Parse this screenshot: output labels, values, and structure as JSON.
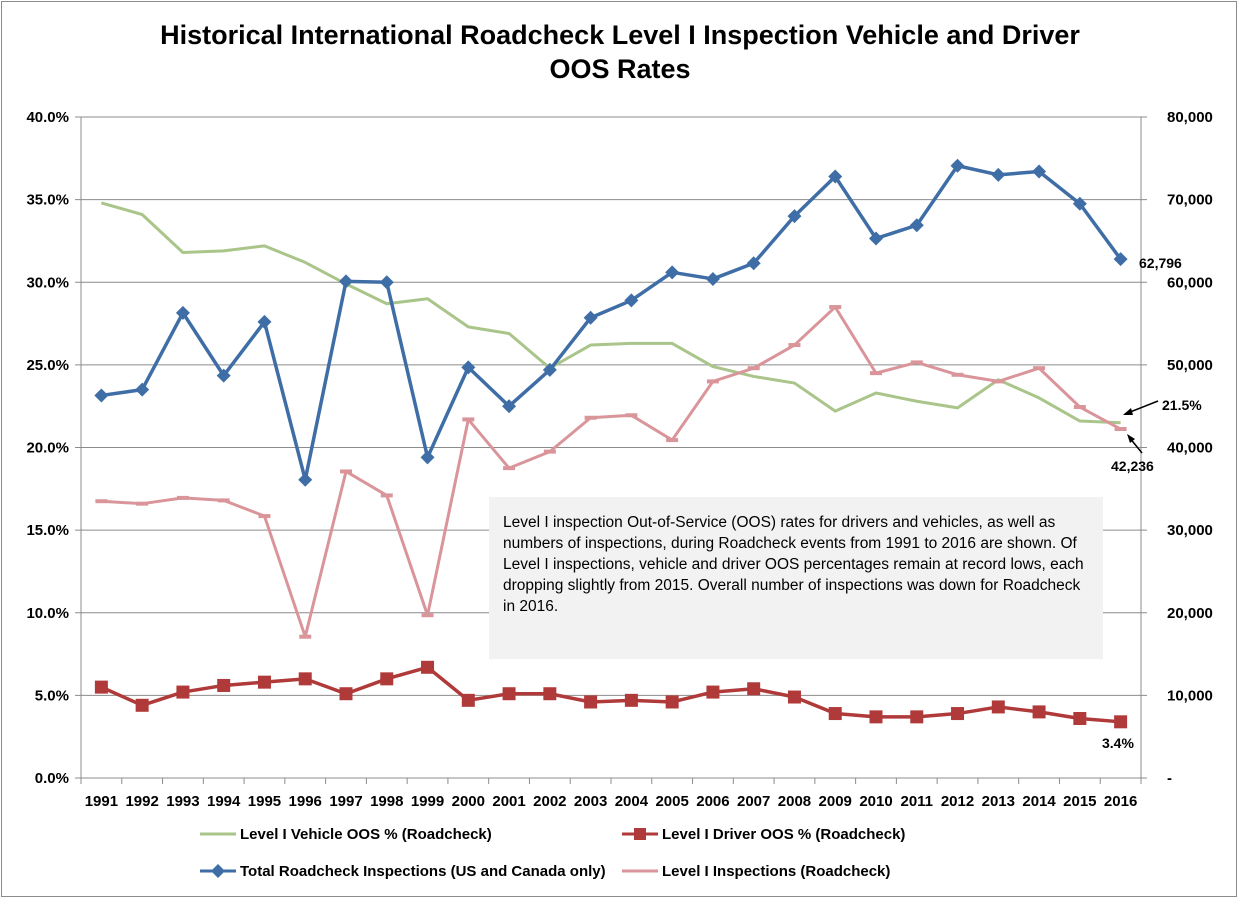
{
  "title_line1": "Historical International Roadcheck Level I Inspection Vehicle and Driver",
  "title_line2": "OOS Rates",
  "note_text": "Level I inspection Out-of-Service (OOS) rates for drivers and vehicles, as well as numbers of inspections, during Roadcheck events from 1991 to 2016 are shown.  Of Level I inspections, vehicle and driver OOS percentages remain at record lows, each dropping slightly from 2015. Overall number of inspections was down for Roadcheck in 2016.",
  "annotations": {
    "total_last": "62,796",
    "vehicle_last": "21.5%",
    "level1_last": "42,236",
    "driver_last": "3.4%"
  },
  "colors": {
    "vehicle": "#a9c58a",
    "driver": "#b03a3a",
    "total": "#3f6ea7",
    "level1": "#d9959a"
  },
  "chart_data": {
    "type": "line",
    "categories": [
      "1991",
      "1992",
      "1993",
      "1994",
      "1995",
      "1996",
      "1997",
      "1998",
      "1999",
      "2000",
      "2001",
      "2002",
      "2003",
      "2004",
      "2005",
      "2006",
      "2007",
      "2008",
      "2009",
      "2010",
      "2011",
      "2012",
      "2013",
      "2014",
      "2015",
      "2016"
    ],
    "left_axis": {
      "ylim": [
        0,
        40
      ],
      "ticks": [
        "0.0%",
        "5.0%",
        "10.0%",
        "15.0%",
        "20.0%",
        "25.0%",
        "30.0%",
        "35.0%",
        "40.0%"
      ]
    },
    "right_axis": {
      "ylim": [
        0,
        80000
      ],
      "ticks": [
        "-",
        "10,000",
        "20,000",
        "30,000",
        "40,000",
        "50,000",
        "60,000",
        "70,000",
        "80,000"
      ]
    },
    "series": [
      {
        "name": "Level I Vehicle OOS % (Roadcheck)",
        "axis": "left",
        "marker": "none",
        "values": [
          34.8,
          34.1,
          31.8,
          31.9,
          32.2,
          31.2,
          29.9,
          28.7,
          29.0,
          27.3,
          26.9,
          24.8,
          26.2,
          26.3,
          26.3,
          24.9,
          24.3,
          23.9,
          22.2,
          23.3,
          22.8,
          22.4,
          24.1,
          23.0,
          21.6,
          21.5
        ]
      },
      {
        "name": "Level I Driver OOS % (Roadcheck)",
        "axis": "left",
        "marker": "square",
        "values": [
          5.5,
          4.4,
          5.2,
          5.6,
          5.8,
          6.0,
          5.1,
          6.0,
          6.7,
          4.7,
          5.1,
          5.1,
          4.6,
          4.7,
          4.6,
          5.2,
          5.4,
          4.9,
          3.9,
          3.7,
          3.7,
          3.9,
          4.3,
          4.0,
          3.6,
          3.4
        ]
      },
      {
        "name": "Total Roadcheck Inspections (US and Canada only)",
        "axis": "right",
        "marker": "diamond",
        "values": [
          46300,
          47000,
          56300,
          48700,
          55200,
          36100,
          60100,
          60000,
          38800,
          49700,
          45000,
          49400,
          55700,
          57800,
          61200,
          60400,
          62300,
          68000,
          72800,
          65300,
          66900,
          74100,
          73000,
          73400,
          69500,
          62796
        ]
      },
      {
        "name": "Level I Inspections (Roadcheck)",
        "axis": "right",
        "marker": "dash",
        "values": [
          33500,
          33200,
          33900,
          33600,
          31700,
          17100,
          37100,
          34200,
          19700,
          43400,
          37500,
          39500,
          43600,
          43900,
          40900,
          48000,
          49600,
          52400,
          57000,
          49000,
          50300,
          48800,
          48000,
          49600,
          44900,
          42236
        ]
      }
    ],
    "legend_position": "bottom",
    "grid": "horizontal"
  }
}
